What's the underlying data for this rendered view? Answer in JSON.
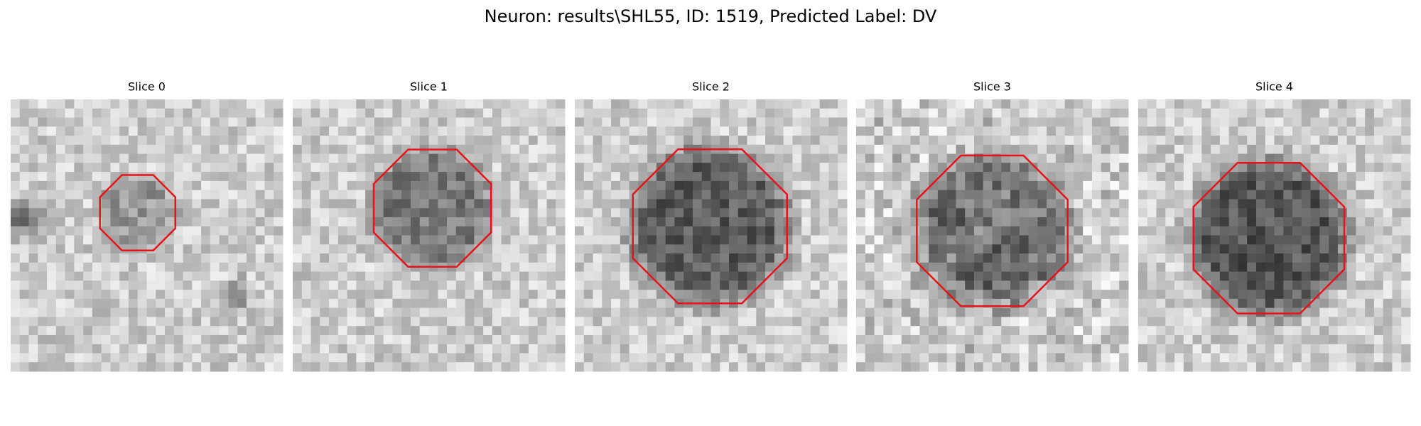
{
  "title": "Neuron: results\\SHL55, ID: 1519, Predicted Label: DV",
  "panels": [
    {
      "title": "Slice 0"
    },
    {
      "title": "Slice 1"
    },
    {
      "title": "Slice 2"
    },
    {
      "title": "Slice 3"
    },
    {
      "title": "Slice 4"
    }
  ]
}
